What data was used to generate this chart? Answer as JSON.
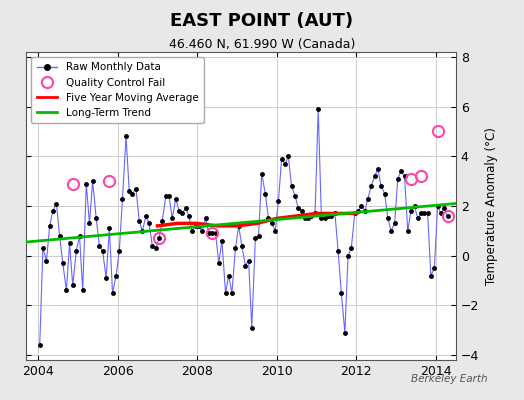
{
  "title": "EAST POINT (AUT)",
  "subtitle": "46.460 N, 61.990 W (Canada)",
  "ylabel": "Temperature Anomaly (°C)",
  "watermark": "Berkeley Earth",
  "bg_color": "#e8e8e8",
  "plot_bg_color": "#ffffff",
  "xlim": [
    2003.7,
    2014.5
  ],
  "ylim": [
    -4.2,
    8.2
  ],
  "yticks": [
    -4,
    -2,
    0,
    2,
    4,
    6,
    8
  ],
  "xticks": [
    2004,
    2006,
    2008,
    2010,
    2012,
    2014
  ],
  "raw_x": [
    2004.04,
    2004.12,
    2004.21,
    2004.29,
    2004.37,
    2004.46,
    2004.54,
    2004.62,
    2004.71,
    2004.79,
    2004.87,
    2004.96,
    2005.04,
    2005.12,
    2005.21,
    2005.29,
    2005.37,
    2005.46,
    2005.54,
    2005.62,
    2005.71,
    2005.79,
    2005.87,
    2005.96,
    2006.04,
    2006.12,
    2006.21,
    2006.29,
    2006.37,
    2006.46,
    2006.54,
    2006.62,
    2006.71,
    2006.79,
    2006.87,
    2006.96,
    2007.04,
    2007.12,
    2007.21,
    2007.29,
    2007.37,
    2007.46,
    2007.54,
    2007.62,
    2007.71,
    2007.79,
    2007.87,
    2007.96,
    2008.04,
    2008.12,
    2008.21,
    2008.29,
    2008.37,
    2008.46,
    2008.54,
    2008.62,
    2008.71,
    2008.79,
    2008.87,
    2008.96,
    2009.04,
    2009.12,
    2009.21,
    2009.29,
    2009.37,
    2009.46,
    2009.54,
    2009.62,
    2009.71,
    2009.79,
    2009.87,
    2009.96,
    2010.04,
    2010.12,
    2010.21,
    2010.29,
    2010.37,
    2010.46,
    2010.54,
    2010.62,
    2010.71,
    2010.79,
    2010.87,
    2010.96,
    2011.04,
    2011.12,
    2011.21,
    2011.29,
    2011.37,
    2011.46,
    2011.54,
    2011.62,
    2011.71,
    2011.79,
    2011.87,
    2011.96,
    2012.04,
    2012.12,
    2012.21,
    2012.29,
    2012.37,
    2012.46,
    2012.54,
    2012.62,
    2012.71,
    2012.79,
    2012.87,
    2012.96,
    2013.04,
    2013.12,
    2013.21,
    2013.29,
    2013.37,
    2013.46,
    2013.54,
    2013.62,
    2013.71,
    2013.79,
    2013.87,
    2013.96,
    2014.04,
    2014.12,
    2014.21,
    2014.29
  ],
  "raw_y": [
    -3.6,
    0.3,
    -0.2,
    1.2,
    1.8,
    2.1,
    0.8,
    -0.3,
    -1.4,
    0.5,
    -1.2,
    0.2,
    0.8,
    -1.4,
    2.9,
    1.3,
    3.0,
    1.5,
    0.4,
    0.2,
    -0.9,
    1.1,
    -1.5,
    -0.8,
    0.2,
    2.3,
    4.8,
    2.6,
    2.5,
    2.7,
    1.4,
    1.0,
    1.6,
    1.3,
    0.4,
    0.3,
    0.7,
    1.4,
    2.4,
    2.4,
    1.5,
    2.3,
    1.8,
    1.7,
    1.9,
    1.6,
    1.0,
    1.2,
    1.2,
    1.0,
    1.5,
    0.9,
    0.9,
    0.9,
    -0.3,
    0.6,
    -1.5,
    -0.8,
    -1.5,
    0.3,
    1.2,
    0.4,
    -0.4,
    -0.2,
    -2.9,
    0.7,
    0.8,
    3.3,
    2.5,
    1.5,
    1.3,
    1.0,
    2.2,
    3.9,
    3.7,
    4.0,
    2.8,
    2.4,
    1.9,
    1.8,
    1.5,
    1.5,
    1.6,
    1.7,
    5.9,
    1.5,
    1.5,
    1.6,
    1.6,
    1.7,
    0.2,
    -1.5,
    -3.1,
    0.0,
    0.3,
    1.7,
    1.8,
    2.0,
    1.8,
    2.3,
    2.8,
    3.2,
    3.5,
    2.8,
    2.5,
    1.5,
    1.0,
    1.3,
    3.1,
    3.4,
    3.2,
    1.0,
    1.8,
    2.0,
    1.5,
    1.7,
    1.7,
    1.7,
    -0.8,
    -0.5,
    2.0,
    1.7,
    1.9,
    1.6
  ],
  "qc_fail_x": [
    2004.87,
    2005.79,
    2007.04,
    2008.37,
    2013.37,
    2013.62,
    2014.04,
    2014.29
  ],
  "qc_fail_y": [
    2.9,
    3.0,
    0.7,
    0.9,
    3.1,
    3.2,
    5.0,
    1.6
  ],
  "moving_avg_x": [
    2007.0,
    2007.5,
    2008.0,
    2008.5,
    2009.0,
    2009.5,
    2010.0,
    2010.5,
    2011.0,
    2011.5,
    2012.0
  ],
  "moving_avg_y": [
    1.2,
    1.3,
    1.3,
    1.2,
    1.2,
    1.3,
    1.5,
    1.6,
    1.7,
    1.7,
    1.7
  ],
  "trend_x": [
    2003.7,
    2014.5
  ],
  "trend_y": [
    0.55,
    2.1
  ],
  "raw_line_color": "#6666ff",
  "raw_marker_color": "#000000",
  "qc_color": "#ff44aa",
  "moving_avg_color": "#ff0000",
  "trend_color": "#00bb00",
  "grid_color": "#cccccc"
}
